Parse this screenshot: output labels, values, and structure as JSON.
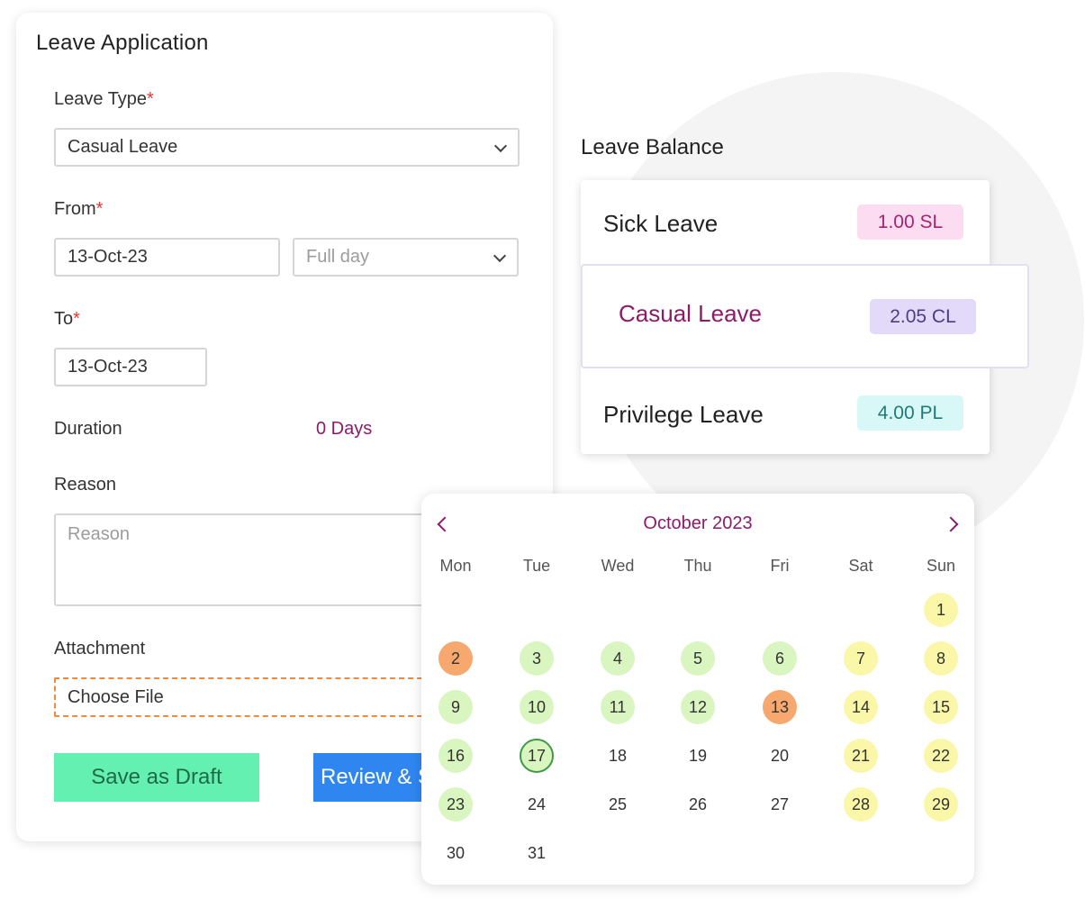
{
  "form": {
    "title": "Leave Application",
    "leave_type_label": "Leave Type",
    "leave_type_value": "Casual Leave",
    "from_label": "From",
    "from_date": "13-Oct-23",
    "from_day_type_placeholder": "Full day",
    "to_label": "To",
    "to_date": "13-Oct-23",
    "duration_label": "Duration",
    "duration_value": "0 Days",
    "reason_label": "Reason",
    "reason_placeholder": "Reason",
    "attachment_label": "Attachment",
    "attachment_button": "Choose File",
    "draft_button": "Save as Draft",
    "review_button": "Review & Submit",
    "required_mark": "*"
  },
  "balance": {
    "title": "Leave Balance",
    "items": [
      {
        "name": "Sick Leave",
        "value": "1.00 SL",
        "chip_bg": "#fcdcf0",
        "chip_fg": "#a4246f",
        "name_color": "#222222"
      },
      {
        "name": "Casual Leave",
        "value": "2.05 CL",
        "chip_bg": "#e3d9f8",
        "chip_fg": "#4a3f86",
        "name_color": "#8e1a6b"
      },
      {
        "name": "Privilege Leave",
        "value": "4.00 PL",
        "chip_bg": "#d8f8f8",
        "chip_fg": "#1f7a78",
        "name_color": "#222222"
      }
    ]
  },
  "calendar": {
    "month_label": "October 2023",
    "weekdays": [
      "Mon",
      "Tue",
      "Wed",
      "Thu",
      "Fri",
      "Sat",
      "Sun"
    ],
    "first_weekday_index": 6,
    "days_in_month": 31,
    "today": 17,
    "status": {
      "1": "yellow",
      "2": "orange",
      "3": "green",
      "4": "green",
      "5": "green",
      "6": "green",
      "7": "yellow",
      "8": "yellow",
      "9": "green",
      "10": "green",
      "11": "green",
      "12": "green",
      "13": "orange",
      "14": "yellow",
      "15": "yellow",
      "16": "green",
      "17": "green",
      "21": "yellow",
      "22": "yellow",
      "23": "green",
      "28": "yellow",
      "29": "yellow"
    }
  },
  "colors": {
    "accent": "#8e1a6b",
    "draft_bg": "#63f0b0",
    "review_bg": "#2f86f0",
    "attachment_border": "#f08a3c",
    "required": "#e53935"
  }
}
